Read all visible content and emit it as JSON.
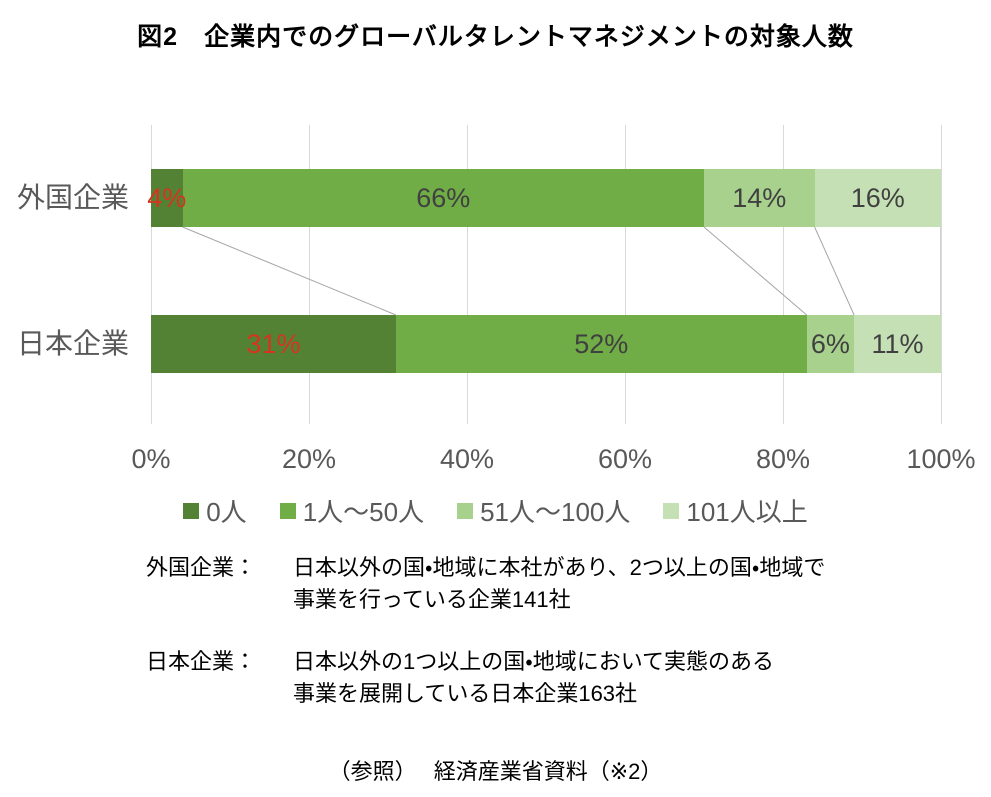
{
  "figure": {
    "title": "図2　企業内でのグローバルタレントマネジメントの対象人数"
  },
  "chart_data": {
    "type": "bar",
    "orientation": "horizontal",
    "stacked": true,
    "categories": [
      "外国企業",
      "日本企業"
    ],
    "series": [
      {
        "name": "0人",
        "color": "#548235",
        "label_color": "#d6341f",
        "values": [
          4,
          31
        ]
      },
      {
        "name": "1人～50人",
        "color": "#70AD47",
        "label_color": "#404040",
        "values": [
          66,
          52
        ]
      },
      {
        "name": "51人～100人",
        "color": "#A9D18E",
        "label_color": "#404040",
        "values": [
          14,
          6
        ]
      },
      {
        "name": "101人以上",
        "color": "#C5E0B4",
        "label_color": "#404040",
        "values": [
          16,
          11
        ]
      }
    ],
    "value_suffix": "%",
    "x_ticks": [
      "0%",
      "20%",
      "40%",
      "60%",
      "80%",
      "100%"
    ],
    "xlim": [
      0,
      100
    ],
    "grid": true,
    "legend_position": "bottom",
    "colors": {
      "gridline": "#d9d9d9",
      "connector": "#a6a6a6",
      "axis_text": "#595959",
      "bar_label": "#404040",
      "highlight_label": "#d6341f"
    }
  },
  "notes": [
    {
      "label": "外国企業：",
      "lines": [
        "日本以外の国・地域に本社があり、2つ以上の国・地域で",
        "事業を行っている企業141社"
      ]
    },
    {
      "label": "日本企業：",
      "lines": [
        "日本以外の1つ以上の国・地域において実態のある",
        "事業を展開している日本企業163社"
      ]
    }
  ],
  "footer": "（参照）　 経済産業省資料（※2）"
}
